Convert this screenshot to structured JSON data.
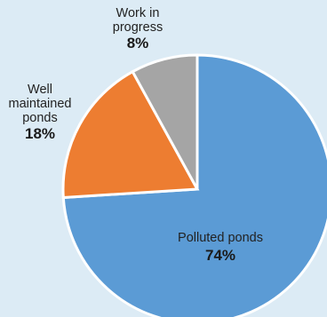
{
  "chart_data": {
    "type": "pie",
    "start": "12 o'clock, clockwise",
    "slices": [
      {
        "label": [
          "Polluted ponds"
        ],
        "value": 74,
        "value_label": "74%",
        "color": "#5b9bd5",
        "label_inside": true
      },
      {
        "label": [
          "Well",
          "maintained",
          "ponds"
        ],
        "value": 18,
        "value_label": "18%",
        "color": "#ed7d31",
        "label_inside": false
      },
      {
        "label": [
          "Work in",
          "progress"
        ],
        "value": 8,
        "value_label": "8%",
        "color": "#a5a5a5",
        "label_inside": false
      }
    ],
    "slice_border_color": "#ffffff",
    "background": "#dcebf5"
  }
}
